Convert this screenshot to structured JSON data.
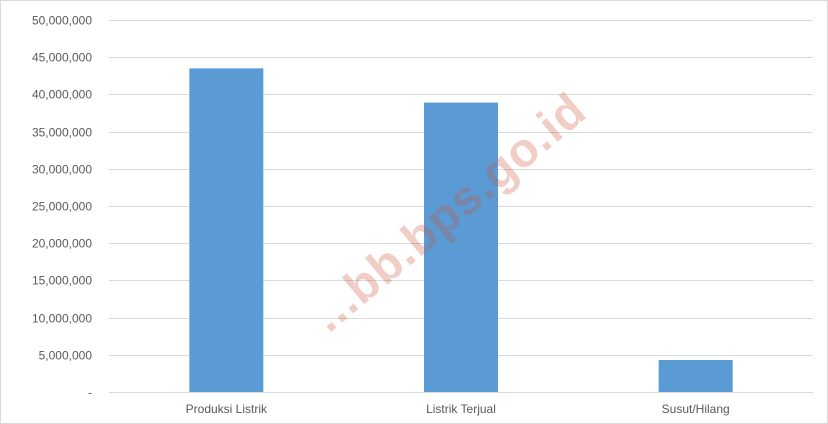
{
  "chart_data": {
    "type": "bar",
    "title": "",
    "xlabel": "",
    "ylabel": "",
    "categories": [
      "Produksi Listrik",
      "Listrik Terjual",
      "Susut/Hilang"
    ],
    "values": [
      43500000,
      38900000,
      4300000
    ],
    "ylim": [
      0,
      50000000
    ],
    "yticks": [
      0,
      5000000,
      10000000,
      15000000,
      20000000,
      25000000,
      30000000,
      35000000,
      40000000,
      45000000,
      50000000
    ],
    "ytick_labels": [
      "-",
      "5,000,000",
      "10,000,000",
      "15,000,000",
      "20,000,000",
      "25,000,000",
      "30,000,000",
      "35,000,000",
      "40,000,000",
      "45,000,000",
      "50,000,000"
    ],
    "grid": true,
    "legend": "none",
    "bar_color": "#5b9bd5",
    "grid_color": "#d9d9d9"
  },
  "watermark": "...bb.bps.go.id"
}
